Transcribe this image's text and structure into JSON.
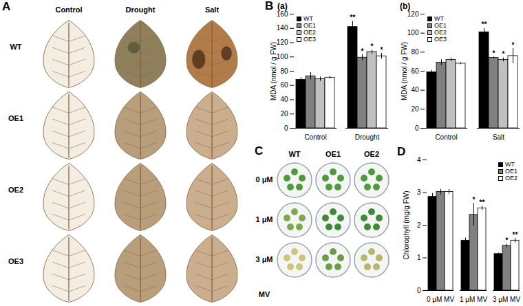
{
  "chart_data": [
    {
      "type": "bar",
      "panel_label": "B",
      "title": "(a)",
      "categories": [
        "Control",
        "Drought"
      ],
      "series": [
        {
          "name": "WT",
          "color": "#000000",
          "values": [
            68,
            142
          ],
          "errors": [
            3,
            8
          ],
          "significance": [
            null,
            "**"
          ]
        },
        {
          "name": "OE1",
          "color": "#808080",
          "values": [
            73,
            99
          ],
          "errors": [
            5,
            4
          ],
          "significance": [
            null,
            "*"
          ]
        },
        {
          "name": "OE2",
          "color": "#c0c0c0",
          "values": [
            69,
            107
          ],
          "errors": [
            3,
            3
          ],
          "significance": [
            null,
            "*"
          ]
        },
        {
          "name": "OE3",
          "color": "#ffffff",
          "values": [
            71,
            101
          ],
          "errors": [
            2,
            4
          ],
          "significance": [
            null,
            "*"
          ]
        }
      ],
      "y_label": "MDA (nmol / g FW)",
      "ylim": [
        0,
        160
      ],
      "yticks": [
        0,
        20,
        40,
        60,
        80,
        100,
        120,
        140,
        160
      ],
      "legend": "top-left"
    },
    {
      "type": "bar",
      "title": "(b)",
      "categories": [
        "Control",
        "Salt"
      ],
      "series": [
        {
          "name": "WT",
          "color": "#000000",
          "values": [
            59,
            101
          ],
          "errors": [
            2,
            4
          ],
          "significance": [
            null,
            "**"
          ]
        },
        {
          "name": "OE1",
          "color": "#808080",
          "values": [
            69,
            74
          ],
          "errors": [
            3,
            1
          ],
          "significance": [
            null,
            "*"
          ]
        },
        {
          "name": "OE2",
          "color": "#c0c0c0",
          "values": [
            72,
            72
          ],
          "errors": [
            2,
            2
          ],
          "significance": [
            null,
            "*"
          ]
        },
        {
          "name": "OE3",
          "color": "#ffffff",
          "values": [
            68,
            76
          ],
          "errors": [
            1,
            8
          ],
          "significance": [
            null,
            "*"
          ]
        }
      ],
      "y_label": "MDA (nmol / g FW)",
      "ylim": [
        0,
        120
      ],
      "yticks": [
        0,
        20,
        40,
        60,
        80,
        100,
        120
      ],
      "legend": "top-left"
    },
    {
      "type": "bar",
      "panel_label": "D",
      "categories": [
        "0 μM MV",
        "1 μM MV",
        "3 μM MV"
      ],
      "series": [
        {
          "name": "WT",
          "color": "#000000",
          "values": [
            2.87,
            1.53,
            1.12
          ],
          "errors": [
            0.1,
            0.08,
            0.03
          ],
          "significance": [
            null,
            null,
            null
          ]
        },
        {
          "name": "OE1",
          "color": "#808080",
          "values": [
            3.02,
            2.32,
            1.37
          ],
          "errors": [
            0.08,
            0.35,
            0.05
          ],
          "significance": [
            null,
            "*",
            "*"
          ]
        },
        {
          "name": "OE2",
          "color": "#ffffff",
          "values": [
            3.02,
            2.52,
            1.53
          ],
          "errors": [
            0.08,
            0.07,
            0.07
          ],
          "significance": [
            null,
            "**",
            "**"
          ]
        }
      ],
      "y_label": "Chlorophyll (mg/g FW)",
      "ylim": [
        0,
        4
      ],
      "yticks": [
        0,
        1,
        2,
        3,
        4
      ],
      "legend": "top-right"
    }
  ],
  "image_panels": [
    {
      "panel_label": "A",
      "columns": [
        "Control",
        "Drought",
        "Salt"
      ],
      "rows": [
        "WT",
        "OE1",
        "OE2",
        "OE3"
      ]
    },
    {
      "panel_label": "C",
      "columns": [
        "WT",
        "OE1",
        "OE2"
      ],
      "rows": [
        "0 μM",
        "1 μM",
        "3 μM"
      ],
      "footer": "MV"
    }
  ]
}
